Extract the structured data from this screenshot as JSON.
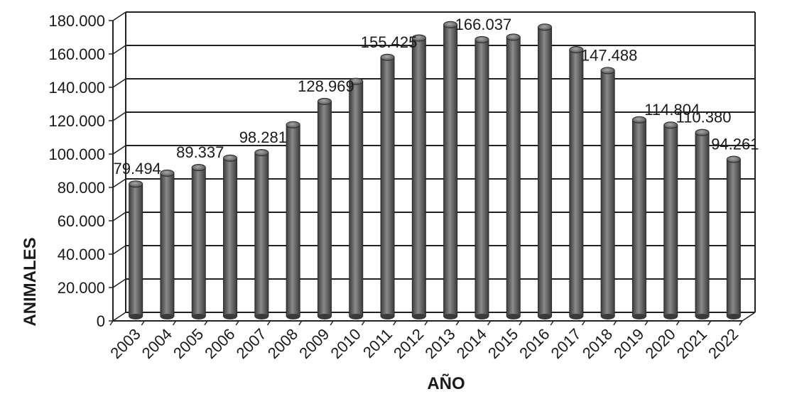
{
  "chart_data": {
    "type": "bar",
    "title": "",
    "xlabel": "AÑO",
    "ylabel": "ANIMALES",
    "ylim": [
      0,
      180000
    ],
    "grid": true,
    "legend": "none",
    "bar_color": "#6a6a6a",
    "yticks": [
      "0",
      "20.000",
      "40.000",
      "60.000",
      "80.000",
      "100.000",
      "120.000",
      "140.000",
      "160.000",
      "180.000"
    ],
    "categories": [
      "2003",
      "2004",
      "2005",
      "2006",
      "2007",
      "2008",
      "2009",
      "2010",
      "2011",
      "2012",
      "2013",
      "2014",
      "2015",
      "2016",
      "2017",
      "2018",
      "2019",
      "2020",
      "2021",
      "2022"
    ],
    "values": [
      79494,
      86000,
      89337,
      95000,
      98281,
      115000,
      128969,
      141000,
      155425,
      167000,
      175000,
      166037,
      167500,
      173500,
      160000,
      147488,
      118000,
      114804,
      110380,
      94261
    ],
    "data_labels": [
      "79.494",
      "",
      "89.337",
      "",
      "98.281",
      "",
      "128.969",
      "",
      "155.425",
      "",
      "",
      "166.037",
      "",
      "",
      "",
      "147.488",
      "",
      "114.804",
      "110.380",
      "94.261"
    ]
  }
}
